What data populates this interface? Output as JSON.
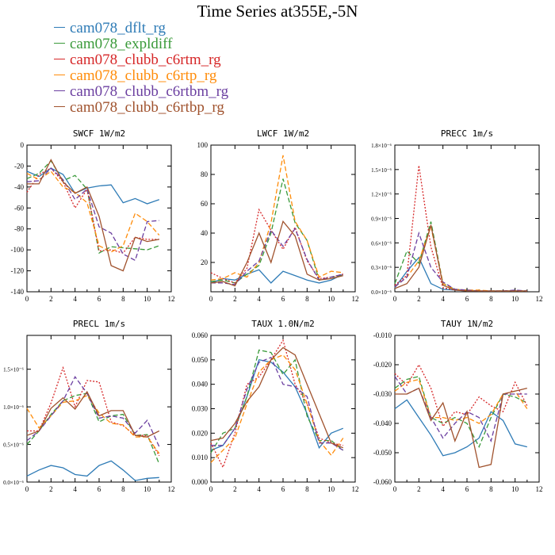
{
  "title": "Time Series at355E,-5N",
  "colors": {
    "dflt": "#2e7bb6",
    "expldiff": "#3a9a3a",
    "c6rtm": "#d62728",
    "c6rtp": "#ff8c0a",
    "c6rtbm": "#6b3fa0",
    "c6rtbp": "#a0522d"
  },
  "legend": [
    {
      "name": "cam078_dflt_rg",
      "color": "#2e7bb6"
    },
    {
      "name": "cam078_expldiff",
      "color": "#3a9a3a"
    },
    {
      "name": "cam078_clubb_c6rtm_rg",
      "color": "#d62728"
    },
    {
      "name": "cam078_clubb_c6rtp_rg",
      "color": "#ff8c0a"
    },
    {
      "name": "cam078_clubb_c6rtbm_rg",
      "color": "#6b3fa0"
    },
    {
      "name": "cam078_clubb_c6rtbp_rg",
      "color": "#a0522d"
    }
  ],
  "chart_data": [
    {
      "type": "line",
      "title": "SWCF   1W/m2",
      "x": [
        0,
        1,
        2,
        3,
        4,
        5,
        6,
        7,
        8,
        9,
        10,
        11
      ],
      "xlim": [
        0,
        12
      ],
      "ylim": [
        -140,
        0
      ],
      "xticks": [
        0,
        2,
        4,
        6,
        8,
        10,
        12
      ],
      "yticks": [
        -140,
        -120,
        -100,
        -80,
        -60,
        -40,
        -20,
        0
      ],
      "yticklabels": [
        "-140",
        "-120",
        "-100",
        "-80",
        "-60",
        "-40",
        "-20",
        "0"
      ],
      "series": [
        {
          "key": "dflt",
          "dash": "solid",
          "values": [
            -25,
            -30,
            -22,
            -28,
            -46,
            -41,
            -39,
            -38,
            -55,
            -51,
            -56,
            -52
          ]
        },
        {
          "key": "expldiff",
          "dash": "dash",
          "values": [
            -32,
            -27,
            -15,
            -34,
            -29,
            -42,
            -103,
            -97,
            -98,
            -99,
            -100,
            -96
          ]
        },
        {
          "key": "c6rtm",
          "dash": "dot",
          "values": [
            -45,
            -28,
            -22,
            -35,
            -60,
            -42,
            -101,
            -100,
            -103,
            -88,
            -90,
            -90
          ]
        },
        {
          "key": "c6rtp",
          "dash": "dash",
          "values": [
            -27,
            -33,
            -25,
            -40,
            -45,
            -55,
            -96,
            -102,
            -96,
            -65,
            -73,
            -86
          ]
        },
        {
          "key": "c6rtbm",
          "dash": "dash",
          "values": [
            -35,
            -34,
            -22,
            -33,
            -52,
            -42,
            -78,
            -84,
            -104,
            -110,
            -73,
            -72
          ]
        },
        {
          "key": "c6rtbp",
          "dash": "solid",
          "values": [
            -37,
            -37,
            -14,
            -35,
            -46,
            -40,
            -68,
            -115,
            -120,
            -88,
            -92,
            -90
          ]
        }
      ]
    },
    {
      "type": "line",
      "title": "LWCF   1W/m2",
      "x": [
        0,
        1,
        2,
        3,
        4,
        5,
        6,
        7,
        8,
        9,
        10,
        11
      ],
      "xlim": [
        0,
        12
      ],
      "ylim": [
        0,
        100
      ],
      "xticks": [
        0,
        2,
        4,
        6,
        8,
        10,
        12
      ],
      "yticks": [
        20,
        40,
        60,
        80,
        100
      ],
      "yticklabels": [
        "20",
        "40",
        "60",
        "80",
        "100"
      ],
      "series": [
        {
          "key": "dflt",
          "dash": "solid",
          "values": [
            6,
            9,
            8,
            12,
            15,
            6,
            14,
            11,
            8,
            6,
            8,
            12
          ]
        },
        {
          "key": "expldiff",
          "dash": "dash",
          "values": [
            7,
            8,
            6,
            12,
            18,
            40,
            77,
            47,
            35,
            8,
            10,
            11
          ]
        },
        {
          "key": "c6rtm",
          "dash": "dot",
          "values": [
            13,
            9,
            6,
            16,
            56,
            42,
            29,
            44,
            21,
            9,
            10,
            12
          ]
        },
        {
          "key": "c6rtp",
          "dash": "dash",
          "values": [
            8,
            9,
            13,
            10,
            20,
            47,
            93,
            48,
            35,
            10,
            14,
            13
          ]
        },
        {
          "key": "c6rtbm",
          "dash": "dash",
          "values": [
            6,
            6,
            5,
            14,
            21,
            42,
            31,
            43,
            22,
            8,
            10,
            12
          ]
        },
        {
          "key": "c6rtbp",
          "dash": "solid",
          "values": [
            6,
            7,
            4,
            20,
            40,
            20,
            48,
            38,
            12,
            8,
            9,
            11
          ]
        }
      ]
    },
    {
      "type": "line",
      "title": "PRECC   1m/s",
      "x": [
        0,
        1,
        2,
        3,
        4,
        5,
        6,
        7,
        8,
        9,
        10,
        11
      ],
      "xlim": [
        0,
        12
      ],
      "ylim": [
        0,
        1.8
      ],
      "xticks": [
        0,
        2,
        4,
        6,
        8,
        10,
        12
      ],
      "yticks": [
        0,
        0.3,
        0.6,
        0.9,
        1.2,
        1.5,
        1.8
      ],
      "yticklabels": [
        "0.0×10⁻⁶",
        "0.3×10⁻⁶",
        "0.6×10⁻⁶",
        "0.9×10⁻⁶",
        "1.2×10⁻⁶",
        "1.5×10⁻⁶",
        "1.8×10⁻⁶"
      ],
      "series": [
        {
          "key": "dflt",
          "dash": "solid",
          "values": [
            0.05,
            0.25,
            0.42,
            0.1,
            0.03,
            0.02,
            0.01,
            0.01,
            0.01,
            0.01,
            0.01,
            0.01
          ]
        },
        {
          "key": "expldiff",
          "dash": "dash",
          "values": [
            0.1,
            0.5,
            0.35,
            0.86,
            0.1,
            0.03,
            0.02,
            0.01,
            0.01,
            0.01,
            0.01,
            0.01
          ]
        },
        {
          "key": "c6rtm",
          "dash": "dot",
          "values": [
            0.08,
            0.2,
            1.55,
            0.55,
            0.05,
            0.02,
            0.02,
            0.01,
            0.01,
            0.01,
            0.01,
            0.01
          ]
        },
        {
          "key": "c6rtp",
          "dash": "dash",
          "values": [
            0.06,
            0.18,
            0.38,
            0.8,
            0.1,
            0.03,
            0.02,
            0.02,
            0.01,
            0.01,
            0.01,
            0.01
          ]
        },
        {
          "key": "c6rtbm",
          "dash": "dash",
          "values": [
            0.06,
            0.18,
            0.72,
            0.3,
            0.12,
            0.03,
            0.02,
            0.01,
            0.01,
            0.01,
            0.02,
            0.01
          ]
        },
        {
          "key": "c6rtbp",
          "dash": "solid",
          "values": [
            0.04,
            0.1,
            0.3,
            0.82,
            0.08,
            0.02,
            0.01,
            0.01,
            0.01,
            0.01,
            0.01,
            0.01
          ]
        }
      ]
    },
    {
      "type": "line",
      "title": "PRECL   1m/s",
      "x": [
        0,
        1,
        2,
        3,
        4,
        5,
        6,
        7,
        8,
        9,
        10,
        11
      ],
      "xlim": [
        0,
        12
      ],
      "ylim": [
        0,
        1.95
      ],
      "xticks": [
        0,
        2,
        4,
        6,
        8,
        10,
        12
      ],
      "yticks": [
        0,
        0.5,
        1.0,
        1.5
      ],
      "yticklabels": [
        "0.0×10⁻⁶",
        "0.5×10⁻⁶",
        "1.0×10⁻⁶",
        "1.5×10⁻⁶"
      ],
      "series": [
        {
          "key": "dflt",
          "dash": "solid",
          "values": [
            0.08,
            0.16,
            0.22,
            0.19,
            0.1,
            0.08,
            0.22,
            0.28,
            0.16,
            0.02,
            0.05,
            0.06
          ]
        },
        {
          "key": "expldiff",
          "dash": "dash",
          "values": [
            0.5,
            0.68,
            0.9,
            1.08,
            1.15,
            1.18,
            0.8,
            0.88,
            0.9,
            0.62,
            0.63,
            0.24
          ]
        },
        {
          "key": "c6rtm",
          "dash": "dot",
          "values": [
            0.68,
            0.68,
            1.05,
            1.52,
            1.0,
            1.35,
            1.33,
            0.8,
            0.75,
            0.62,
            0.62,
            0.35
          ]
        },
        {
          "key": "c6rtp",
          "dash": "dash",
          "values": [
            0.98,
            0.72,
            0.88,
            1.06,
            1.08,
            1.15,
            0.92,
            0.78,
            0.76,
            0.6,
            0.6,
            0.38
          ]
        },
        {
          "key": "c6rtbm",
          "dash": "dash",
          "values": [
            0.55,
            0.68,
            0.88,
            1.08,
            1.4,
            1.18,
            0.85,
            0.88,
            0.85,
            0.65,
            0.82,
            0.47
          ]
        },
        {
          "key": "c6rtbp",
          "dash": "solid",
          "values": [
            0.62,
            0.68,
            0.98,
            1.12,
            0.97,
            1.2,
            0.88,
            0.95,
            0.95,
            0.62,
            0.6,
            0.68
          ]
        }
      ]
    },
    {
      "type": "line",
      "title": "TAUX   1.0N/m2",
      "x": [
        0,
        1,
        2,
        3,
        4,
        5,
        6,
        7,
        8,
        9,
        10,
        11
      ],
      "xlim": [
        0,
        12
      ],
      "ylim": [
        0,
        0.06
      ],
      "xticks": [
        0,
        2,
        4,
        6,
        8,
        10,
        12
      ],
      "yticks": [
        0,
        0.01,
        0.02,
        0.03,
        0.04,
        0.05,
        0.06
      ],
      "yticklabels": [
        "0.000",
        "0.010",
        "0.020",
        "0.030",
        "0.040",
        "0.050",
        "0.060"
      ],
      "series": [
        {
          "key": "dflt",
          "dash": "solid",
          "values": [
            0.013,
            0.015,
            0.022,
            0.035,
            0.05,
            0.049,
            0.045,
            0.039,
            0.028,
            0.014,
            0.02,
            0.022
          ]
        },
        {
          "key": "expldiff",
          "dash": "dash",
          "values": [
            0.012,
            0.02,
            0.022,
            0.035,
            0.054,
            0.053,
            0.044,
            0.05,
            0.027,
            0.017,
            0.017,
            0.013
          ]
        },
        {
          "key": "c6rtm",
          "dash": "dot",
          "values": [
            0.016,
            0.006,
            0.02,
            0.04,
            0.043,
            0.05,
            0.058,
            0.04,
            0.032,
            0.018,
            0.016,
            0.015
          ]
        },
        {
          "key": "c6rtp",
          "dash": "dash",
          "values": [
            0.008,
            0.013,
            0.018,
            0.032,
            0.045,
            0.05,
            0.052,
            0.046,
            0.032,
            0.017,
            0.011,
            0.018
          ]
        },
        {
          "key": "c6rtbm",
          "dash": "dash",
          "values": [
            0.015,
            0.015,
            0.022,
            0.038,
            0.049,
            0.051,
            0.04,
            0.039,
            0.035,
            0.016,
            0.016,
            0.013
          ]
        },
        {
          "key": "c6rtbp",
          "dash": "solid",
          "values": [
            0.017,
            0.018,
            0.024,
            0.033,
            0.039,
            0.05,
            0.055,
            0.052,
            0.04,
            0.028,
            0.016,
            0.014
          ]
        }
      ]
    },
    {
      "type": "line",
      "title": "TAUY   1N/m2",
      "x": [
        0,
        1,
        2,
        3,
        4,
        5,
        6,
        7,
        8,
        9,
        10,
        11
      ],
      "xlim": [
        0,
        12
      ],
      "ylim": [
        -0.06,
        -0.01
      ],
      "xticks": [
        0,
        2,
        4,
        6,
        8,
        10,
        12
      ],
      "yticks": [
        -0.06,
        -0.05,
        -0.04,
        -0.03,
        -0.02,
        -0.01
      ],
      "yticklabels": [
        "-0.060",
        "-0.050",
        "-0.040",
        "-0.030",
        "-0.020",
        "-0.010"
      ],
      "series": [
        {
          "key": "dflt",
          "dash": "solid",
          "values": [
            -0.035,
            -0.032,
            -0.038,
            -0.044,
            -0.051,
            -0.05,
            -0.048,
            -0.045,
            -0.036,
            -0.039,
            -0.047,
            -0.048
          ]
        },
        {
          "key": "expldiff",
          "dash": "dash",
          "values": [
            -0.028,
            -0.025,
            -0.024,
            -0.038,
            -0.04,
            -0.038,
            -0.04,
            -0.048,
            -0.038,
            -0.03,
            -0.031,
            -0.033
          ]
        },
        {
          "key": "c6rtm",
          "dash": "dot",
          "values": [
            -0.023,
            -0.027,
            -0.02,
            -0.028,
            -0.041,
            -0.036,
            -0.037,
            -0.031,
            -0.034,
            -0.036,
            -0.026,
            -0.034
          ]
        },
        {
          "key": "c6rtp",
          "dash": "dash",
          "values": [
            -0.029,
            -0.026,
            -0.025,
            -0.038,
            -0.038,
            -0.039,
            -0.038,
            -0.04,
            -0.037,
            -0.03,
            -0.029,
            -0.035
          ]
        },
        {
          "key": "c6rtbm",
          "dash": "dash",
          "values": [
            -0.024,
            -0.03,
            -0.028,
            -0.038,
            -0.045,
            -0.04,
            -0.036,
            -0.038,
            -0.046,
            -0.03,
            -0.03,
            -0.03
          ]
        },
        {
          "key": "c6rtbp",
          "dash": "solid",
          "values": [
            -0.03,
            -0.03,
            -0.028,
            -0.039,
            -0.033,
            -0.046,
            -0.036,
            -0.055,
            -0.054,
            -0.03,
            -0.029,
            -0.028
          ]
        }
      ]
    }
  ]
}
